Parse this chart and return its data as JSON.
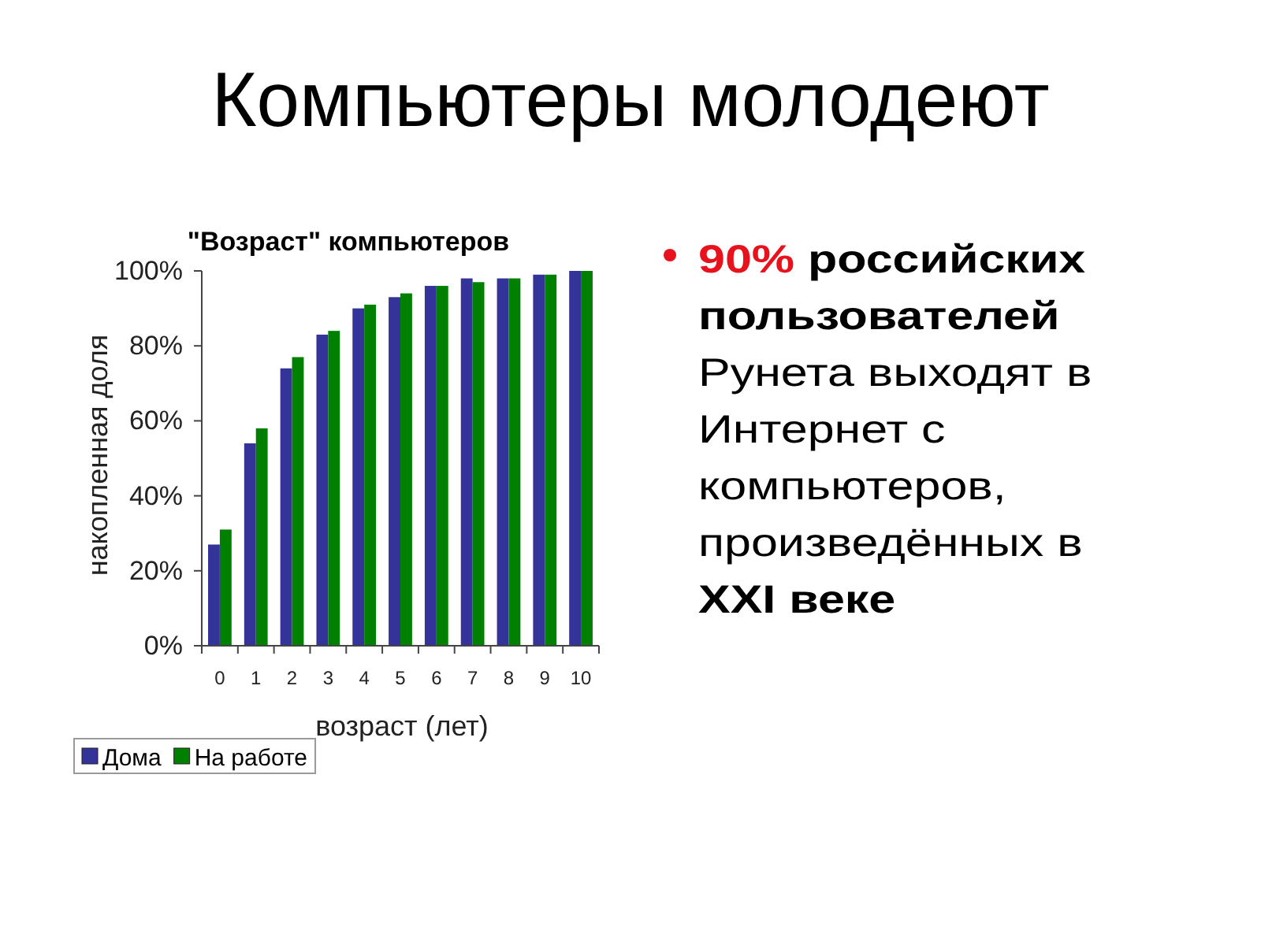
{
  "chart_data": [
    {
      "type": "bar",
      "title": "\"Возраст\" компьютеров",
      "xlabel": "возраст (лет)",
      "ylabel": "накопленная доля",
      "categories": [
        "0",
        "1",
        "2",
        "3",
        "4",
        "5",
        "6",
        "7",
        "8",
        "9",
        "10"
      ],
      "series": [
        {
          "name": "Дома",
          "color": "#333399",
          "values": [
            27,
            54,
            74,
            83,
            90,
            93,
            96,
            98,
            98,
            99,
            100
          ]
        },
        {
          "name": "На работе",
          "color": "#008000",
          "values": [
            31,
            58,
            77,
            84,
            91,
            94,
            96,
            97,
            98,
            99,
            100
          ]
        }
      ],
      "ylim": [
        0,
        100
      ],
      "yticks": [
        {
          "value": 0,
          "label": "0%"
        },
        {
          "value": 20,
          "label": "20%"
        },
        {
          "value": 40,
          "label": "40%"
        },
        {
          "value": 60,
          "label": "60%"
        },
        {
          "value": 80,
          "label": "80%"
        },
        {
          "value": 100,
          "label": "100%"
        }
      ],
      "legend": "bottom left"
    },
    {
      "type": "other",
      "title": "Компьютеры молодеют",
      "annotations": [
        "90%",
        "российских",
        "пользователей",
        "Рунета выходят в Интернет с компьютеров, произведённых в",
        "XXI веке"
      ]
    }
  ]
}
